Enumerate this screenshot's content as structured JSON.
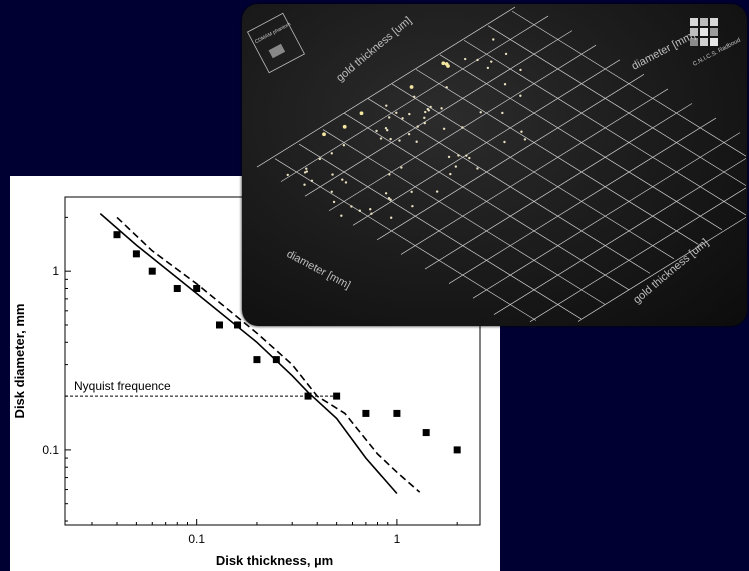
{
  "chart_data": {
    "type": "scatter",
    "xlabel": "Disk thickness, µm",
    "ylabel": "Disk diameter, mm",
    "xscale": "log",
    "yscale": "log",
    "xlim": [
      0.022,
      2.6
    ],
    "ylim": [
      0.038,
      2.6
    ],
    "x_ticks": [
      {
        "value": 0.1,
        "label": "0.1"
      },
      {
        "value": 1,
        "label": "1"
      }
    ],
    "y_ticks": [
      {
        "value": 0.1,
        "label": "0.1"
      },
      {
        "value": 1,
        "label": "1"
      }
    ],
    "annotation": {
      "text": "Nyquist frequence",
      "y": 0.2,
      "x_end": 0.5
    },
    "series": [
      {
        "style": "markers",
        "x": [
          0.04,
          0.05,
          0.06,
          0.08,
          0.13,
          0.2,
          0.36,
          0.5,
          0.7,
          1.0,
          1.4,
          2.0
        ],
        "y": [
          1.6,
          1.25,
          1.0,
          0.8,
          0.5,
          0.32,
          0.2,
          0.2,
          0.16,
          0.16,
          0.125,
          0.1
        ]
      },
      {
        "style": "markers",
        "x": [
          0.1,
          0.16,
          0.25
        ],
        "y": [
          0.8,
          0.5,
          0.32
        ]
      },
      {
        "style": "solid-line",
        "x": [
          0.033,
          0.05,
          0.1,
          0.2,
          0.3,
          0.36,
          0.5,
          0.7,
          1.0
        ],
        "y": [
          2.1,
          1.4,
          0.75,
          0.4,
          0.26,
          0.21,
          0.15,
          0.09,
          0.057
        ]
      },
      {
        "style": "dashed-line",
        "x": [
          0.04,
          0.06,
          0.1,
          0.2,
          0.3,
          0.4,
          0.55,
          0.8,
          1.0,
          1.3
        ],
        "y": [
          2.0,
          1.3,
          0.85,
          0.45,
          0.3,
          0.2,
          0.16,
          0.095,
          0.075,
          0.058
        ]
      }
    ]
  },
  "photo": {
    "label_top": "gold thickness [um]",
    "label_top_right": "diameter [mm]",
    "label_left": "diameter [mm]",
    "label_right": "gold thickness [um]",
    "brand": "C.N.I.C.S. Radboud",
    "badge": "CDMAM phantom"
  }
}
